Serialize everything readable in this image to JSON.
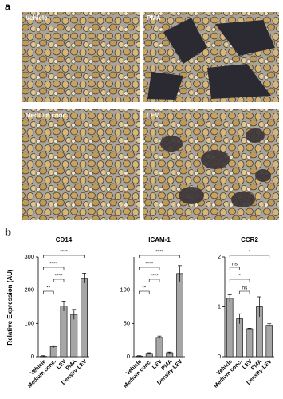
{
  "panel_a": {
    "label": "a",
    "images": [
      "Vehicle",
      "PMA",
      "Medium conc.",
      "LEV"
    ]
  },
  "panel_b": {
    "label": "b",
    "ylabel": "Relative Expression (AU)"
  },
  "chart_data": [
    {
      "type": "bar",
      "title": "CD14",
      "categories": [
        "Vehicle",
        "Medium conc.",
        "LEV",
        "PMA",
        "Density-LEV"
      ],
      "values": [
        1,
        30,
        152,
        127,
        236
      ],
      "errors": [
        2,
        3,
        15,
        15,
        15
      ],
      "color": "#a6a6a6",
      "ylim": [
        0,
        300
      ],
      "yticks": [
        0,
        100,
        200,
        300
      ],
      "annotations": [
        {
          "text": "****",
          "between": [
            "Vehicle",
            "Density-LEV"
          ]
        },
        {
          "text": "****",
          "between": [
            "Vehicle",
            "LEV"
          ]
        },
        {
          "text": "****",
          "between": [
            "Medium conc.",
            "LEV"
          ]
        },
        {
          "text": "**",
          "between": [
            "Vehicle",
            "Medium conc."
          ]
        }
      ]
    },
    {
      "type": "bar",
      "title": "ICAM-1",
      "categories": [
        "Vehicle",
        "Medium conc.",
        "LEV",
        "PMA",
        "Density-LEV"
      ],
      "values": [
        1,
        5,
        29,
        6,
        125
      ],
      "errors": [
        0.5,
        1,
        2,
        1,
        12
      ],
      "color": "#a6a6a6",
      "ylim": [
        0,
        150
      ],
      "yticks": [
        0,
        50,
        100
      ],
      "annotations": [
        {
          "text": "****",
          "between": [
            "Vehicle",
            "Density-LEV"
          ]
        },
        {
          "text": "****",
          "between": [
            "Vehicle",
            "LEV"
          ]
        },
        {
          "text": "****",
          "between": [
            "Medium conc.",
            "LEV"
          ]
        },
        {
          "text": "**",
          "between": [
            "Vehicle",
            "Medium conc."
          ]
        }
      ]
    },
    {
      "type": "bar",
      "title": "CCR2",
      "categories": [
        "Vehicle",
        "Medium conc.",
        "LEV",
        "PMA",
        "Density-LEV"
      ],
      "values": [
        1.17,
        0.76,
        0.56,
        1.0,
        0.63
      ],
      "errors": [
        0.07,
        0.1,
        0.01,
        0.2,
        0.03
      ],
      "color": "#a6a6a6",
      "ylim": [
        0,
        2
      ],
      "yticks": [
        0,
        1,
        2
      ],
      "annotations": [
        {
          "text": "*",
          "between": [
            "Vehicle",
            "Density-LEV"
          ]
        },
        {
          "text": "ns",
          "between": [
            "Vehicle",
            "Medium conc."
          ]
        },
        {
          "text": "*",
          "between": [
            "Vehicle",
            "LEV"
          ]
        },
        {
          "text": "ns",
          "between": [
            "Medium conc.",
            "LEV"
          ]
        }
      ]
    }
  ]
}
